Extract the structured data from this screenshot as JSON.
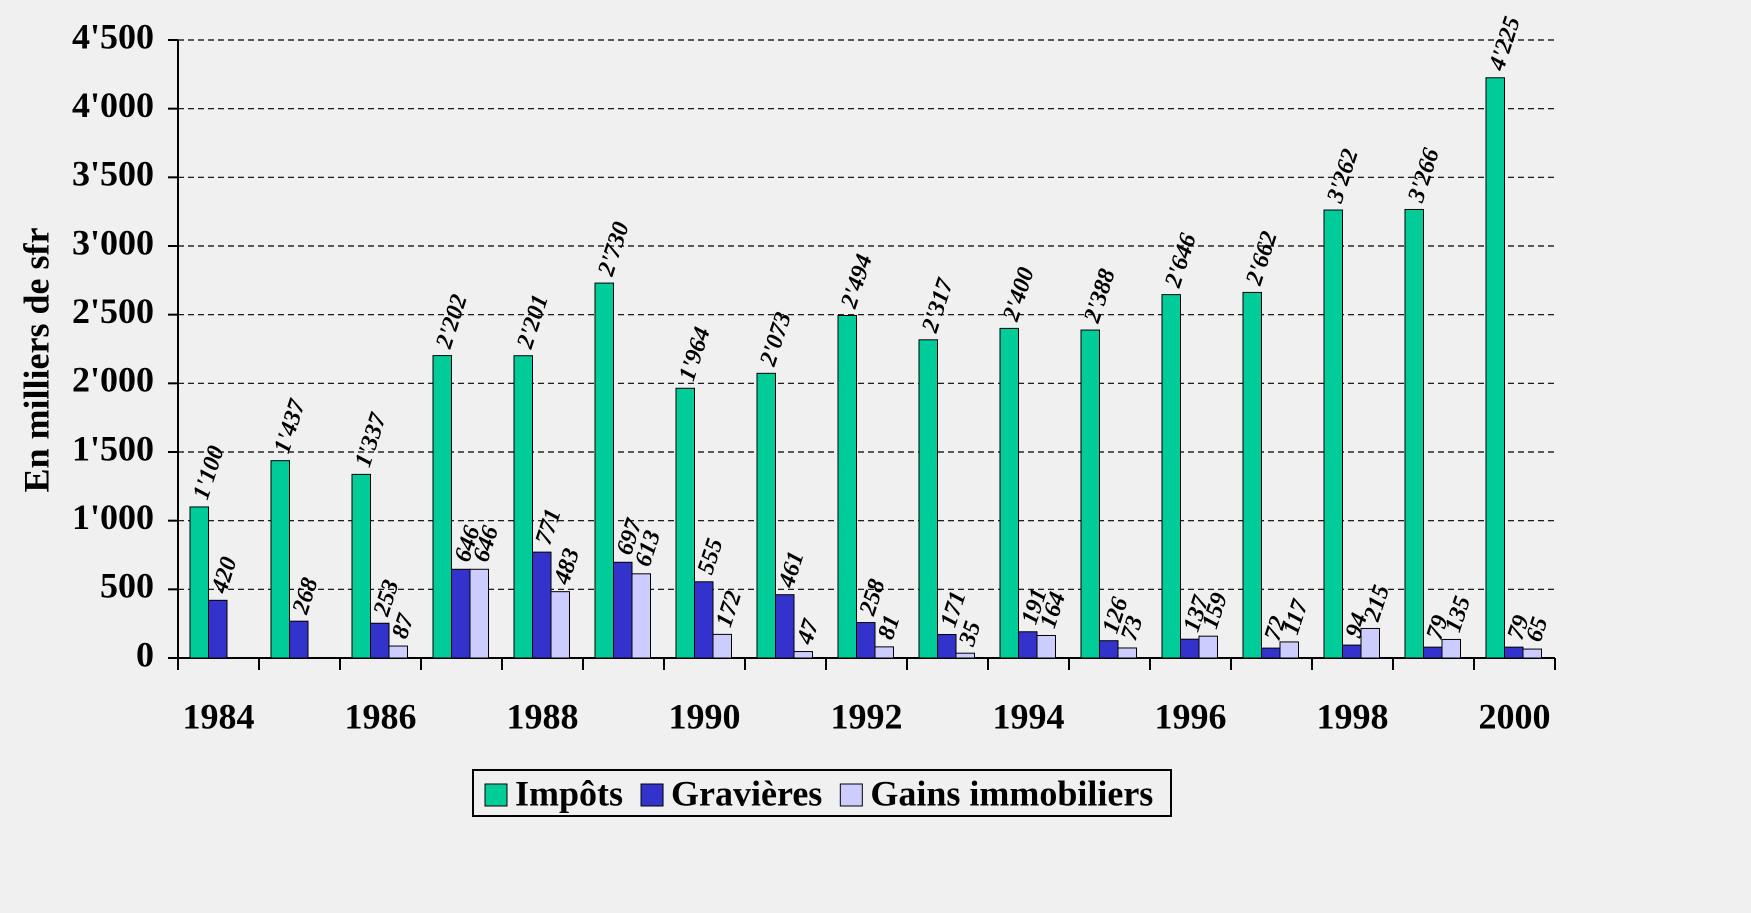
{
  "chart_data": {
    "type": "bar",
    "y_label": "En milliers de sfr",
    "categories": [
      "1984",
      null,
      "1986",
      null,
      "1988",
      null,
      "1990",
      null,
      "1992",
      null,
      "1994",
      null,
      "1996",
      null,
      "1998",
      null,
      "2000"
    ],
    "series": [
      {
        "name": "Impôts",
        "color": "#00cc99",
        "values": [
          1100,
          1437,
          1337,
          2202,
          2201,
          2730,
          1964,
          2073,
          2494,
          2317,
          2400,
          2388,
          2646,
          2662,
          3262,
          3266,
          4225
        ],
        "value_labels": [
          "1'100",
          "1'437",
          "1'337",
          "2'202",
          "2'201",
          "2'730",
          "1'964",
          "2'073",
          "2'494",
          "2'317",
          "2'400",
          "2'388",
          "2'646",
          "2'662",
          "3'262",
          "3'266",
          "4'225"
        ]
      },
      {
        "name": "Gravières",
        "color": "#3333cc",
        "values": [
          420,
          268,
          253,
          646,
          771,
          697,
          555,
          461,
          258,
          171,
          191,
          126,
          137,
          72,
          94,
          79,
          79
        ]
      },
      {
        "name": "Gains immobiliers",
        "color": "#ccccff",
        "values": [
          null,
          null,
          87,
          646,
          483,
          613,
          172,
          47,
          81,
          35,
          164,
          73,
          159,
          117,
          215,
          135,
          65
        ]
      }
    ],
    "ylim": [
      0,
      4500
    ],
    "yticks": [
      0,
      500,
      {
        "value": 1000,
        "label": "1'000"
      },
      {
        "value": 1500,
        "label": "1'500"
      },
      {
        "value": 2000,
        "label": "2'000"
      },
      {
        "value": 2500,
        "label": "2'500"
      },
      {
        "value": 3000,
        "label": "3'000"
      },
      {
        "value": 3500,
        "label": "3'500"
      },
      {
        "value": 4000,
        "label": "4'000"
      },
      {
        "value": 4500,
        "label": "4'500"
      }
    ],
    "grid": true,
    "legend": "bottom"
  }
}
